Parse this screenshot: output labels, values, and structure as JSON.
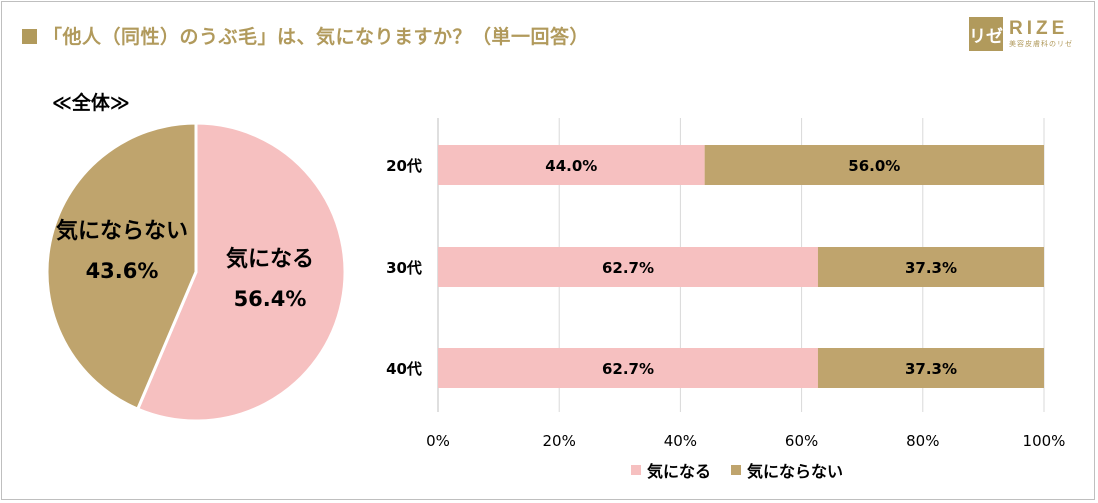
{
  "title": "「他人（同性）のうぶ毛」は、気になりますか？（単一回答）",
  "logo": {
    "mark": "リゼ",
    "word": "RIZE",
    "sub": "美容皮膚科のリゼ"
  },
  "colors": {
    "accent": "#b19a5c",
    "pink": "#f6c0c0",
    "gold": "#bfa46d"
  },
  "chart_data": [
    {
      "type": "pie",
      "title": "≪全体≫",
      "slices": [
        {
          "label": "気になる",
          "value": 56.4,
          "display": "56.4%",
          "color": "#f6c0c0"
        },
        {
          "label": "気にならない",
          "value": 43.6,
          "display": "43.6%",
          "color": "#bfa46d"
        }
      ]
    },
    {
      "type": "bar",
      "orientation": "horizontal",
      "stacked": true,
      "categories": [
        "20代",
        "30代",
        "40代"
      ],
      "series": [
        {
          "name": "気になる",
          "values": [
            44.0,
            62.7,
            62.7
          ],
          "labels": [
            "44.0%",
            "62.7%",
            "62.7%"
          ],
          "color": "#f6c0c0"
        },
        {
          "name": "気にならない",
          "values": [
            56.0,
            37.3,
            37.3
          ],
          "labels": [
            "56.0%",
            "37.3%",
            "37.3%"
          ],
          "color": "#bfa46d"
        }
      ],
      "xlim": [
        0,
        100
      ],
      "xticks": [
        "0%",
        "20%",
        "40%",
        "60%",
        "80%",
        "100%"
      ],
      "grid": true,
      "legend": "bottom"
    }
  ]
}
